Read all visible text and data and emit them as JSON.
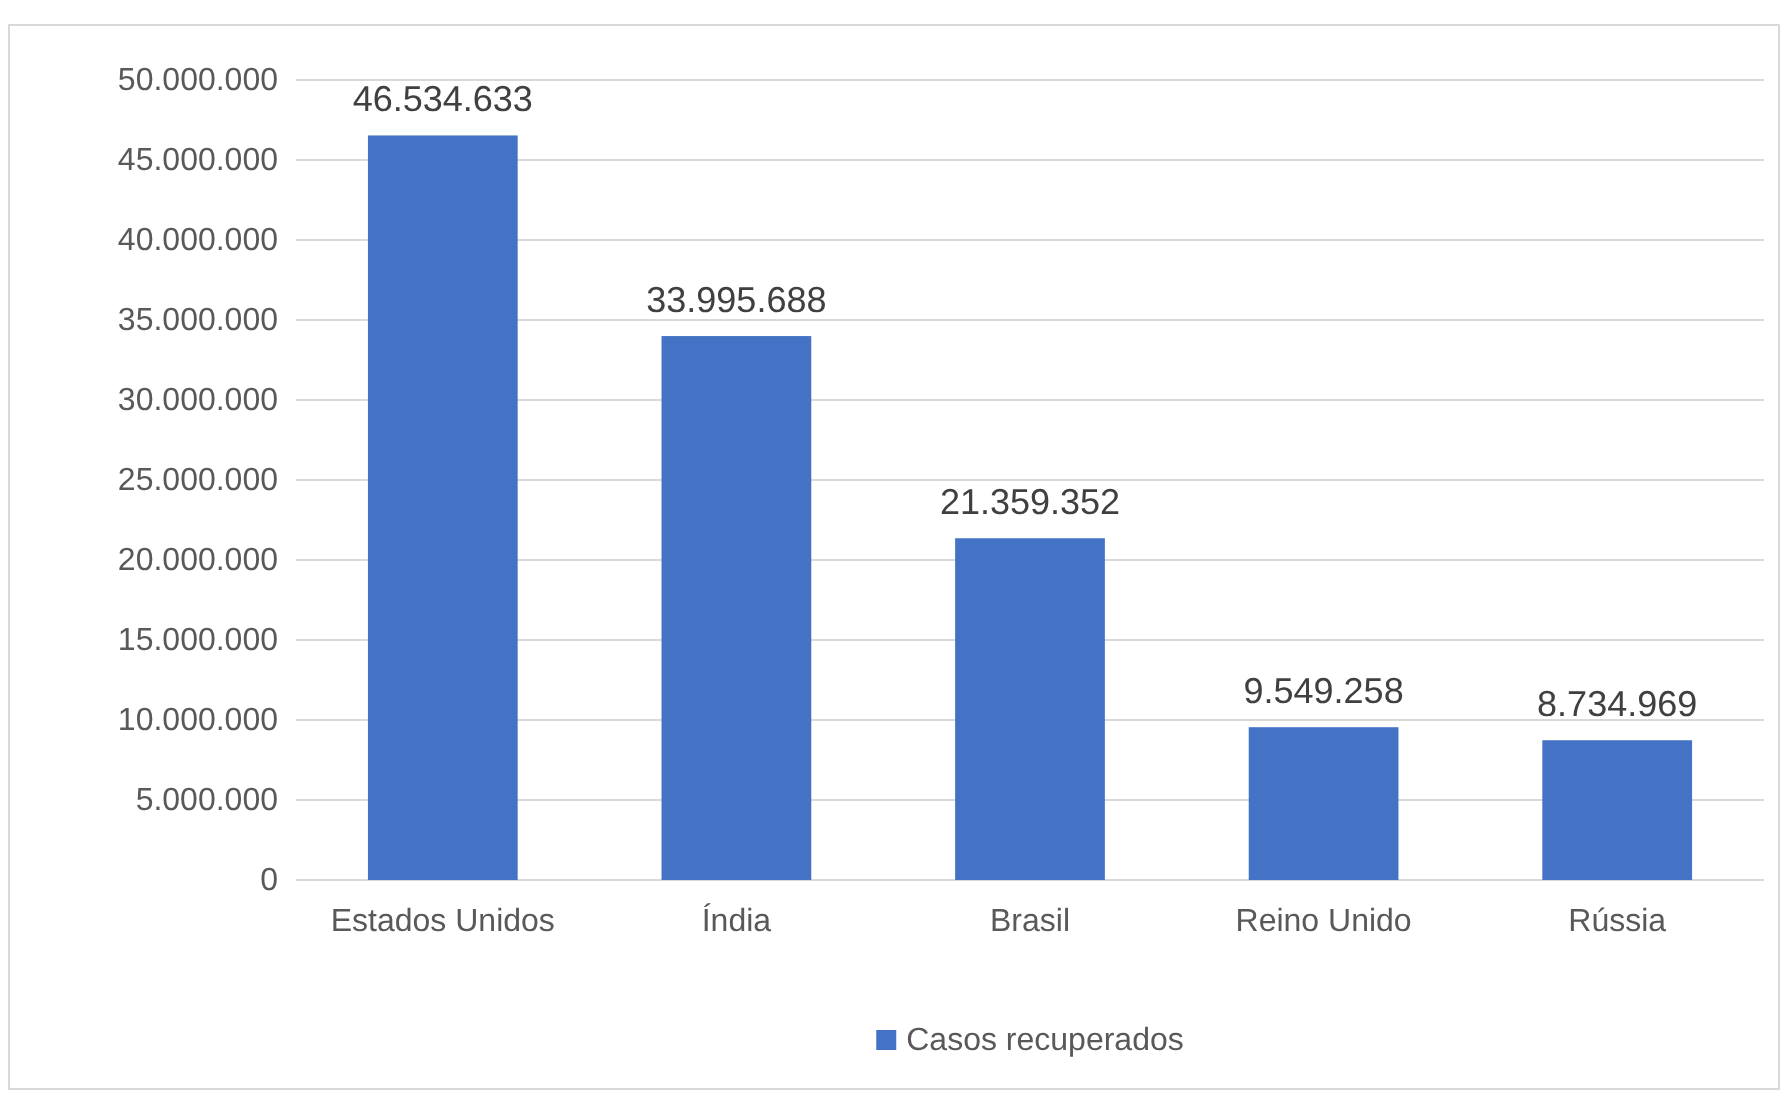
{
  "chart_data": {
    "type": "bar",
    "categories": [
      "Estados Unidos",
      "Índia",
      "Brasil",
      "Reino Unido",
      "Rússia"
    ],
    "series": [
      {
        "name": "Casos recuperados",
        "color": "#4472c4",
        "values": [
          46534633,
          33995688,
          21359352,
          9549258,
          8734969
        ],
        "value_labels": [
          "46.534.633",
          "33.995.688",
          "21.359.352",
          "9.549.258",
          "8.734.969"
        ]
      }
    ],
    "ylim": [
      0,
      50000000
    ],
    "yticks": [
      {
        "value": 0,
        "label": "0"
      },
      {
        "value": 5000000,
        "label": "5.000.000"
      },
      {
        "value": 10000000,
        "label": "10.000.000"
      },
      {
        "value": 15000000,
        "label": "15.000.000"
      },
      {
        "value": 20000000,
        "label": "20.000.000"
      },
      {
        "value": 25000000,
        "label": "25.000.000"
      },
      {
        "value": 30000000,
        "label": "30.000.000"
      },
      {
        "value": 35000000,
        "label": "35.000.000"
      },
      {
        "value": 40000000,
        "label": "40.000.000"
      },
      {
        "value": 45000000,
        "label": "45.000.000"
      },
      {
        "value": 50000000,
        "label": "50.000.000"
      }
    ],
    "grid": "y",
    "legend": "bottom"
  }
}
